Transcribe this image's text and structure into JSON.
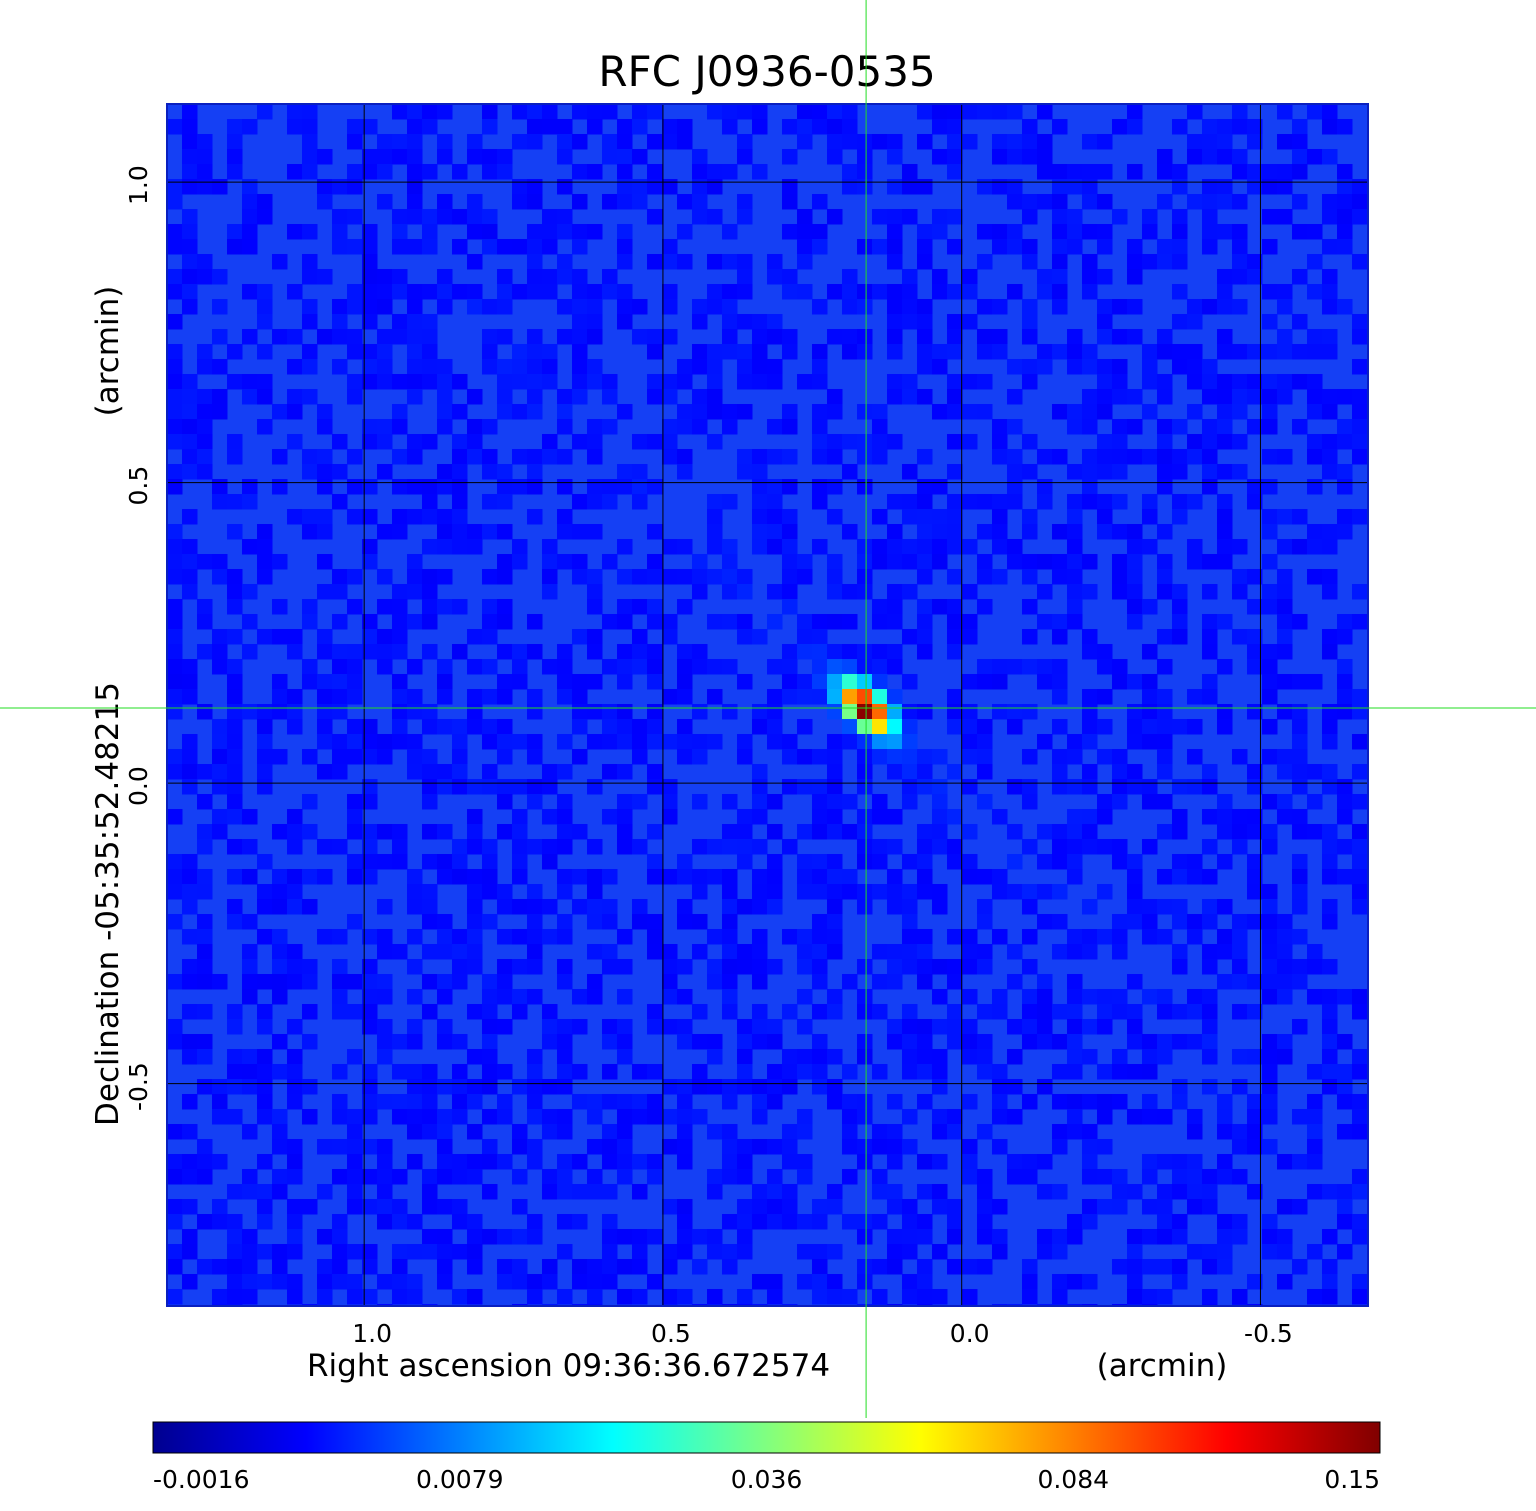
{
  "chart_data": {
    "type": "heatmap",
    "title": "RFC J0936-0535",
    "xlabel": "Right ascension  09:36:36.672574",
    "xunit": "(arcmin)",
    "ylabel": "Declination  -05:35:52.48215",
    "yunit": "(arcmin)",
    "xlim": [
      1.33,
      -0.68
    ],
    "ylim": [
      -0.87,
      1.13
    ],
    "x_ticks": [
      {
        "value": 1.0,
        "label": "1.0"
      },
      {
        "value": 0.5,
        "label": "0.5"
      },
      {
        "value": 0.0,
        "label": "0.0"
      },
      {
        "value": -0.5,
        "label": "-0.5"
      }
    ],
    "y_ticks": [
      {
        "value": 1.0,
        "label": "1.0"
      },
      {
        "value": 0.5,
        "label": "0.5"
      },
      {
        "value": 0.0,
        "label": "0.0"
      },
      {
        "value": -0.5,
        "label": "-0.5"
      }
    ],
    "grid": true,
    "crosshair": {
      "x": 0.16,
      "y": 0.125
    },
    "source": {
      "x": 0.16,
      "y": 0.125,
      "peak": 0.15
    },
    "colorbar": {
      "position": "bottom",
      "colormap": "jet",
      "tick_labels": [
        "-0.0016",
        "0.0079",
        "0.036",
        "0.084",
        "0.15"
      ]
    },
    "colors": {
      "title": "#1010d8",
      "grid": "#000000",
      "crosshair": "#22dd22",
      "background": "#1540f4"
    }
  }
}
